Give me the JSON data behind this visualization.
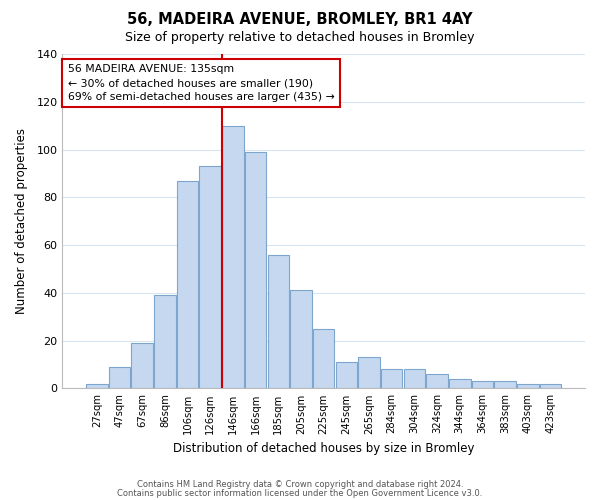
{
  "title": "56, MADEIRA AVENUE, BROMLEY, BR1 4AY",
  "subtitle": "Size of property relative to detached houses in Bromley",
  "xlabel": "Distribution of detached houses by size in Bromley",
  "ylabel": "Number of detached properties",
  "bar_labels": [
    "27sqm",
    "47sqm",
    "67sqm",
    "86sqm",
    "106sqm",
    "126sqm",
    "146sqm",
    "166sqm",
    "185sqm",
    "205sqm",
    "225sqm",
    "245sqm",
    "265sqm",
    "284sqm",
    "304sqm",
    "324sqm",
    "344sqm",
    "364sqm",
    "383sqm",
    "403sqm",
    "423sqm"
  ],
  "bar_values": [
    2,
    9,
    19,
    39,
    87,
    93,
    110,
    99,
    56,
    41,
    25,
    11,
    13,
    8,
    8,
    6,
    4,
    3,
    3,
    2,
    2
  ],
  "bar_color": "#c5d8f0",
  "bar_edge_color": "#7ea6cc",
  "vline_pos": 5.5,
  "vline_color": "#cc0000",
  "annotation_title": "56 MADEIRA AVENUE: 135sqm",
  "annotation_line1": "← 30% of detached houses are smaller (190)",
  "annotation_line2": "69% of semi-detached houses are larger (435) →",
  "annotation_box_color": "#ffffff",
  "annotation_box_edge": "#cc0000",
  "ylim": [
    0,
    140
  ],
  "yticks": [
    0,
    20,
    40,
    60,
    80,
    100,
    120,
    140
  ],
  "footer1": "Contains HM Land Registry data © Crown copyright and database right 2024.",
  "footer2": "Contains public sector information licensed under the Open Government Licence v3.0.",
  "background_color": "#ffffff",
  "grid_color": "#d8e4f0"
}
